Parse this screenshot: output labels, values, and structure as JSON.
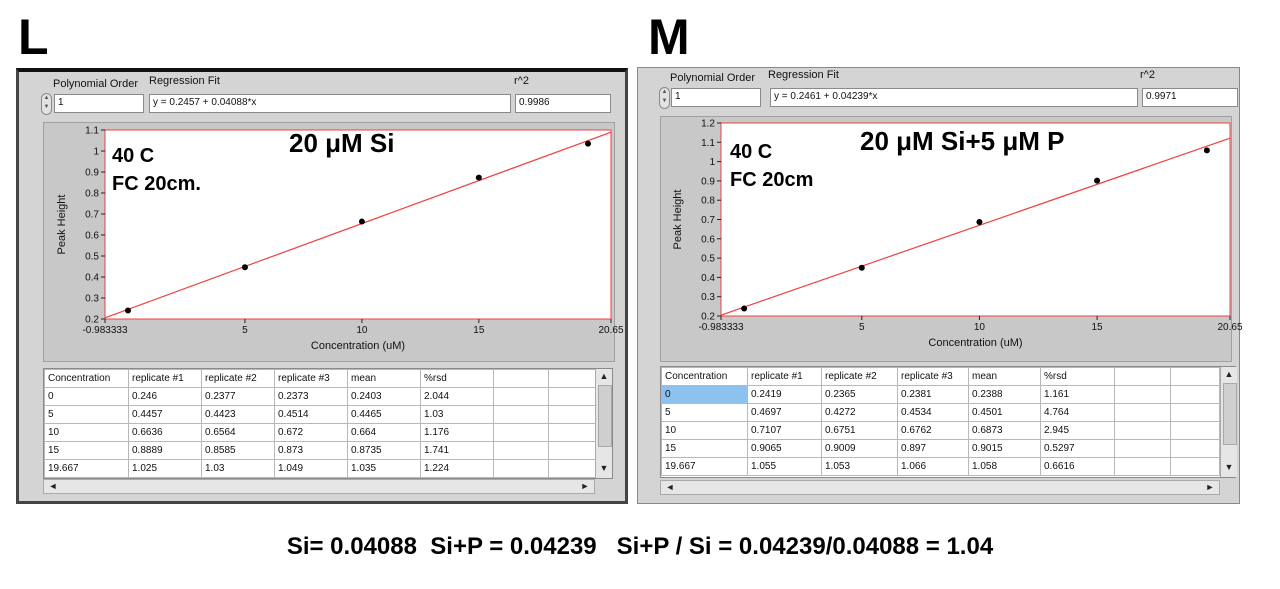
{
  "summary": "Si= 0.04088  Si+P = 0.04239   Si+P / Si = 0.04239/0.04088 = 1.04",
  "panels": [
    {
      "letter": "L",
      "poly_order_label": "Polynomial Order",
      "poly_order_value": "1",
      "regression_label": "Regression Fit",
      "regression_value": "y = 0.2457 + 0.04088*x",
      "r2_label": "r^2",
      "r2_value": "0.9986",
      "annotation_title": "20 μM Si",
      "annotation_line1": "40 C",
      "annotation_line2": "FC 20cm.",
      "chart": {
        "ylabel": "Peak Height",
        "xlabel": "Concentration (uM)",
        "xlim": [
          -0.983333,
          20.65
        ],
        "ylim": [
          0.2,
          1.1
        ],
        "xticks": [
          "-0.983333",
          "5",
          "10",
          "15",
          "20.65"
        ],
        "yticks": [
          "0.2",
          "0.3",
          "0.4",
          "0.5",
          "0.6",
          "0.7",
          "0.8",
          "0.9",
          "1",
          "1.1"
        ]
      },
      "columns": [
        "Concentration",
        "replicate #1",
        "replicate #2",
        "replicate #3",
        "mean",
        "%rsd",
        "",
        ""
      ],
      "rows": [
        [
          "0",
          "0.246",
          "0.2377",
          "0.2373",
          "0.2403",
          "2.044"
        ],
        [
          "5",
          "0.4457",
          "0.4423",
          "0.4514",
          "0.4465",
          "1.03"
        ],
        [
          "10",
          "0.6636",
          "0.6564",
          "0.672",
          "0.664",
          "1.176"
        ],
        [
          "15",
          "0.8889",
          "0.8585",
          "0.873",
          "0.8735",
          "1.741"
        ],
        [
          "19.667",
          "1.025",
          "1.03",
          "1.049",
          "1.035",
          "1.224"
        ]
      ]
    },
    {
      "letter": "M",
      "poly_order_label": "Polynomial Order",
      "poly_order_value": "1",
      "regression_label": "Regression Fit",
      "regression_value": "y = 0.2461 + 0.04239*x",
      "r2_label": "r^2",
      "r2_value": "0.9971",
      "annotation_title": "20 μM Si+5 μM P",
      "annotation_line1": "40 C",
      "annotation_line2": "FC 20cm",
      "chart": {
        "ylabel": "Peak Height",
        "xlabel": "Concentration (uM)",
        "xlim": [
          -0.983333,
          20.65
        ],
        "ylim": [
          0.2,
          1.2
        ],
        "xticks": [
          "-0.983333",
          "5",
          "10",
          "15",
          "20.65"
        ],
        "yticks": [
          "0.2",
          "0.3",
          "0.4",
          "0.5",
          "0.6",
          "0.7",
          "0.8",
          "0.9",
          "1",
          "1.1",
          "1.2"
        ]
      },
      "columns": [
        "Concentration",
        "replicate #1",
        "replicate #2",
        "replicate #3",
        "mean",
        "%rsd",
        "",
        ""
      ],
      "rows": [
        [
          "0",
          "0.2419",
          "0.2365",
          "0.2381",
          "0.2388",
          "1.161"
        ],
        [
          "5",
          "0.4697",
          "0.4272",
          "0.4534",
          "0.4501",
          "4.764"
        ],
        [
          "10",
          "0.7107",
          "0.6751",
          "0.6762",
          "0.6873",
          "2.945"
        ],
        [
          "15",
          "0.9065",
          "0.9009",
          "0.897",
          "0.9015",
          "0.5297"
        ],
        [
          "19.667",
          "1.055",
          "1.053",
          "1.066",
          "1.058",
          "0.6616"
        ]
      ]
    }
  ],
  "chart_data": [
    {
      "type": "scatter",
      "xlabel": "Concentration (uM)",
      "ylabel": "Peak Height",
      "xlim": [
        -0.983333,
        20.65
      ],
      "ylim": [
        0.2,
        1.1
      ],
      "points": [
        [
          0,
          0.2403
        ],
        [
          5,
          0.4465
        ],
        [
          10,
          0.664
        ],
        [
          15,
          0.8735
        ],
        [
          19.667,
          1.035
        ]
      ],
      "fit": {
        "intercept": 0.2457,
        "slope": 0.04088
      },
      "point_color": "#000000",
      "fit_color": "#f04040"
    },
    {
      "type": "scatter",
      "xlabel": "Concentration (uM)",
      "ylabel": "Peak Height",
      "xlim": [
        -0.983333,
        20.65
      ],
      "ylim": [
        0.2,
        1.2
      ],
      "points": [
        [
          0,
          0.2388
        ],
        [
          5,
          0.4501
        ],
        [
          10,
          0.6873
        ],
        [
          15,
          0.9015
        ],
        [
          19.667,
          1.058
        ]
      ],
      "fit": {
        "intercept": 0.2461,
        "slope": 0.04239
      },
      "point_color": "#000000",
      "fit_color": "#f04040"
    }
  ]
}
